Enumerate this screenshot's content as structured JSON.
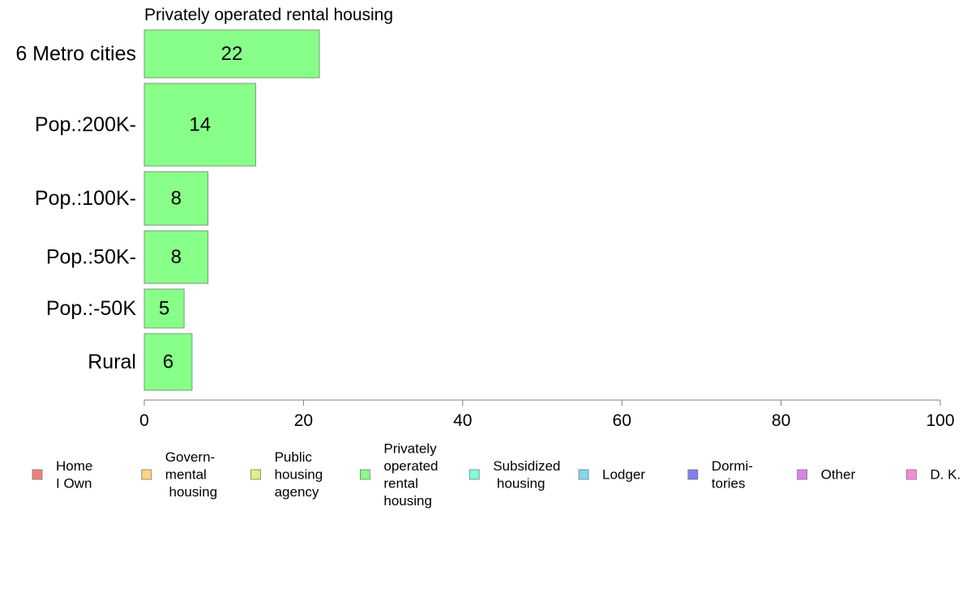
{
  "chart_data": {
    "type": "bar",
    "orientation": "horizontal",
    "title": "Privately operated rental housing",
    "categories": [
      "6 Metro cities",
      "Pop.:200K-",
      "Pop.:100K-",
      "Pop.:50K-",
      "Pop.:-50K",
      "Rural"
    ],
    "values": [
      22,
      14,
      8,
      8,
      5,
      6
    ],
    "data_labels": [
      "22",
      "14",
      "8",
      "8",
      "5",
      "6"
    ],
    "xlim": [
      0,
      100
    ],
    "xticks": [
      0,
      20,
      40,
      60,
      80,
      100
    ],
    "xtick_labels": [
      "0",
      "20",
      "40",
      "60",
      "80",
      "100"
    ],
    "bar_color": "#88ff88",
    "bar_border_color": "#7a9a7a",
    "legend_placement": "bottom",
    "legend": [
      {
        "lines": [
          "Home",
          "I Own"
        ],
        "color": "#f08080"
      },
      {
        "lines": [
          "Govern-",
          "mental",
          " housing"
        ],
        "color": "#ffd580"
      },
      {
        "lines": [
          "Public",
          "housing",
          "agency"
        ],
        "color": "#e0f080"
      },
      {
        "lines": [
          "Privately",
          "operated",
          "rental",
          "housing"
        ],
        "color": "#88ff88"
      },
      {
        "lines": [
          "Subsidized",
          " housing"
        ],
        "color": "#80ffd8"
      },
      {
        "lines": [
          "Lodger"
        ],
        "color": "#80d8f0"
      },
      {
        "lines": [
          "Dormi-",
          "tories"
        ],
        "color": "#8080f0"
      },
      {
        "lines": [
          "Other"
        ],
        "color": "#d880f0"
      },
      {
        "lines": [
          "D. K."
        ],
        "color": "#ff88d8"
      }
    ]
  }
}
